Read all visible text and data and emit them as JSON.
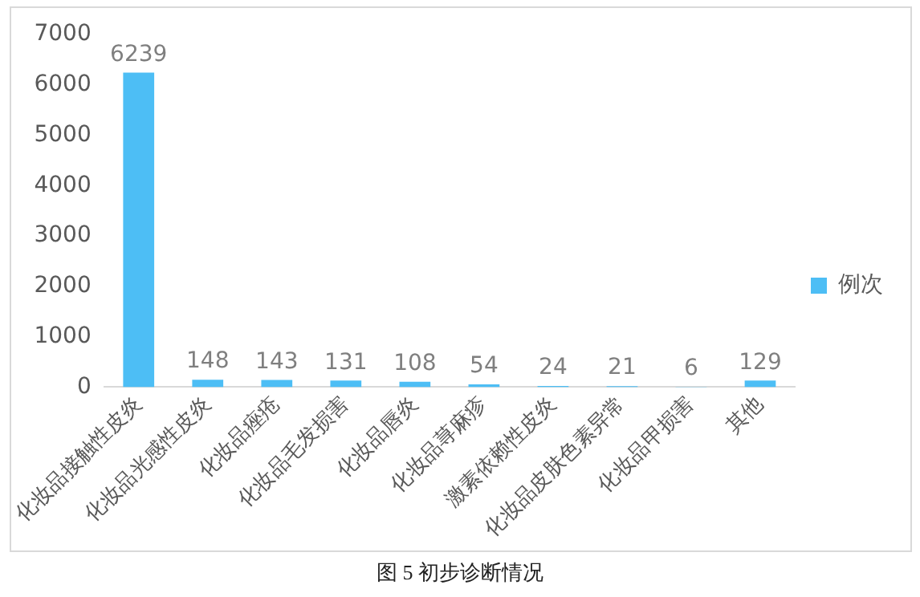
{
  "chart_data": {
    "type": "bar",
    "categories": [
      "化妆品接触性皮炎",
      "化妆品光感性皮炎",
      "化妆品痤疮",
      "化妆品毛发损害",
      "化妆品唇炎",
      "化妆品荨麻疹",
      "激素依赖性皮炎",
      "化妆品皮肤色素异常",
      "化妆品甲损害",
      "其他"
    ],
    "series": [
      {
        "name": "例次",
        "color": "#4dbef5",
        "values": [
          6239,
          148,
          143,
          131,
          108,
          54,
          24,
          21,
          6,
          129
        ]
      }
    ],
    "ylim": [
      0,
      7000
    ],
    "yticks": [
      0,
      1000,
      2000,
      3000,
      4000,
      5000,
      6000,
      7000
    ],
    "grid": false,
    "legend": "right",
    "data_labels": true,
    "annotations": [
      "图 5 初步诊断情况"
    ]
  }
}
